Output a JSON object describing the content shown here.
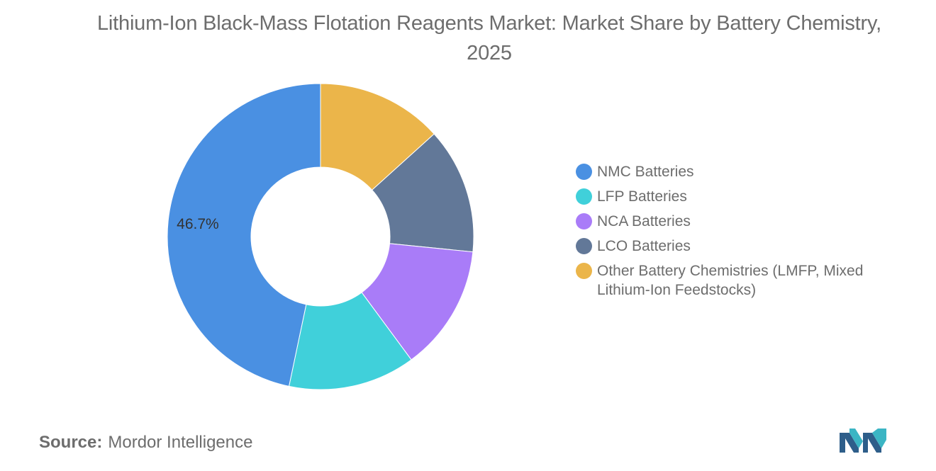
{
  "chart_data": {
    "type": "pie",
    "title": "Lithium-Ion Black-Mass Flotation Reagents Market: Market Share by Battery Chemistry, 2025",
    "categories": [
      "NMC Batteries",
      "LFP Batteries",
      "NCA Batteries",
      "LCO Batteries",
      "Other Battery Chemistries (LMFP, Mixed Lithium-Ion Feedstocks)"
    ],
    "values": [
      46.7,
      13.4,
      13.3,
      13.3,
      13.3
    ],
    "colors": [
      "#4a90e2",
      "#40d0da",
      "#a97cf8",
      "#627898",
      "#ebb54a"
    ],
    "data_labels": [
      "46.7%",
      "",
      "",
      "",
      ""
    ],
    "donut": true,
    "legend_position": "right"
  },
  "source": {
    "key": "Source:",
    "value": "Mordor Intelligence"
  },
  "logo_icon": "mordor-intelligence-logo-icon"
}
